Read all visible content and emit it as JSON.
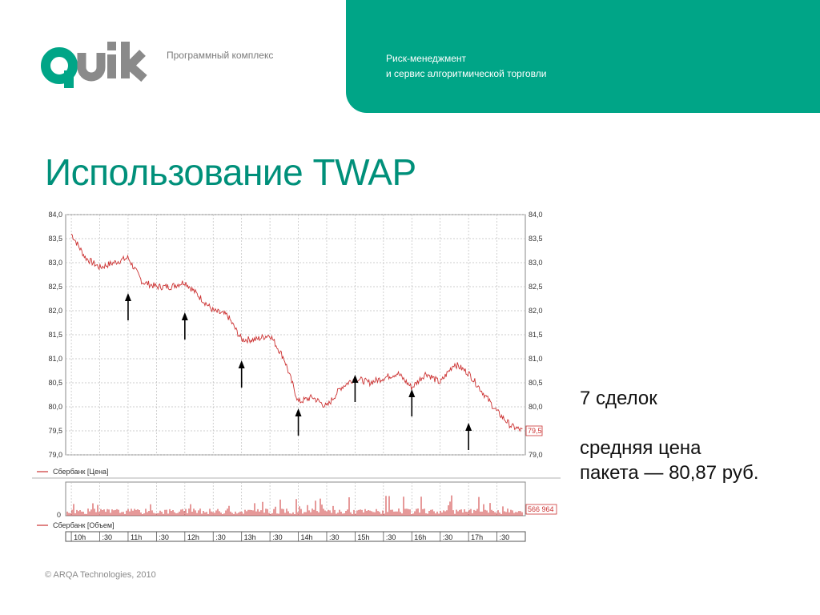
{
  "header": {
    "logo_text": "quik",
    "subtitle": "Программный комплекс",
    "banner_line1": "Риск-менеджмент",
    "banner_line2": "и сервис алгоритмической торговли",
    "accent_color": "#00a587"
  },
  "slide": {
    "title": "Использование TWAP",
    "deals": "7 сделок",
    "avg_price_line1": "средняя цена",
    "avg_price_line2": "пакета — 80,87 руб."
  },
  "footer": {
    "copyright": "© ARQA Technologies, 2010"
  },
  "chart_data": {
    "type": "line",
    "title": "",
    "price_panel": {
      "series_name": "Сбербанк [Цена]",
      "ylim": [
        79.0,
        84.0
      ],
      "y_ticks": [
        "84,0",
        "83,5",
        "83,0",
        "82,5",
        "82,0",
        "81,5",
        "81,0",
        "80,5",
        "80,0",
        "79,5",
        "79,0"
      ],
      "last_price_label": "79,5",
      "line_color": "#cc3333",
      "time_hours": [
        10.0,
        10.25,
        10.5,
        10.75,
        11.0,
        11.25,
        11.5,
        11.75,
        12.0,
        12.25,
        12.5,
        12.75,
        13.0,
        13.25,
        13.5,
        13.75,
        14.0,
        14.25,
        14.5,
        14.75,
        15.0,
        15.25,
        15.5,
        15.75,
        16.0,
        16.25,
        16.5,
        16.75,
        17.0,
        17.25,
        17.5,
        17.75,
        17.95
      ],
      "values": [
        83.6,
        83.1,
        82.9,
        83.0,
        83.1,
        82.6,
        82.5,
        82.5,
        82.6,
        82.3,
        82.0,
        81.9,
        81.4,
        81.4,
        81.5,
        81.0,
        80.1,
        80.2,
        80.0,
        80.4,
        80.6,
        80.5,
        80.6,
        80.7,
        80.4,
        80.7,
        80.5,
        80.9,
        80.7,
        80.3,
        79.9,
        79.6,
        79.5
      ],
      "trade_markers": [
        {
          "x": 11.0,
          "y": 82.4
        },
        {
          "x": 12.0,
          "y": 82.0
        },
        {
          "x": 13.0,
          "y": 81.0
        },
        {
          "x": 14.0,
          "y": 80.0
        },
        {
          "x": 15.0,
          "y": 80.7
        },
        {
          "x": 16.0,
          "y": 80.4
        },
        {
          "x": 17.0,
          "y": 79.7
        }
      ]
    },
    "volume_panel": {
      "series_name": "Сбербанк [Объем]",
      "zero_label": "0",
      "last_volume_label": "566 964",
      "bar_color": "#cc3333"
    },
    "x_axis": {
      "range_hours": [
        9.9,
        18.0
      ],
      "tick_labels": [
        {
          "h": 10.0,
          "label": "10h"
        },
        {
          "h": 10.5,
          "label": ":30"
        },
        {
          "h": 11.0,
          "label": "11h"
        },
        {
          "h": 11.5,
          "label": ":30"
        },
        {
          "h": 12.0,
          "label": "12h"
        },
        {
          "h": 12.5,
          "label": ":30"
        },
        {
          "h": 13.0,
          "label": "13h"
        },
        {
          "h": 13.5,
          "label": ":30"
        },
        {
          "h": 14.0,
          "label": "14h"
        },
        {
          "h": 14.5,
          "label": ":30"
        },
        {
          "h": 15.0,
          "label": "15h"
        },
        {
          "h": 15.5,
          "label": ":30"
        },
        {
          "h": 16.0,
          "label": "16h"
        },
        {
          "h": 16.5,
          "label": ":30"
        },
        {
          "h": 17.0,
          "label": "17h"
        },
        {
          "h": 17.5,
          "label": ":30"
        }
      ]
    },
    "grid": true
  }
}
